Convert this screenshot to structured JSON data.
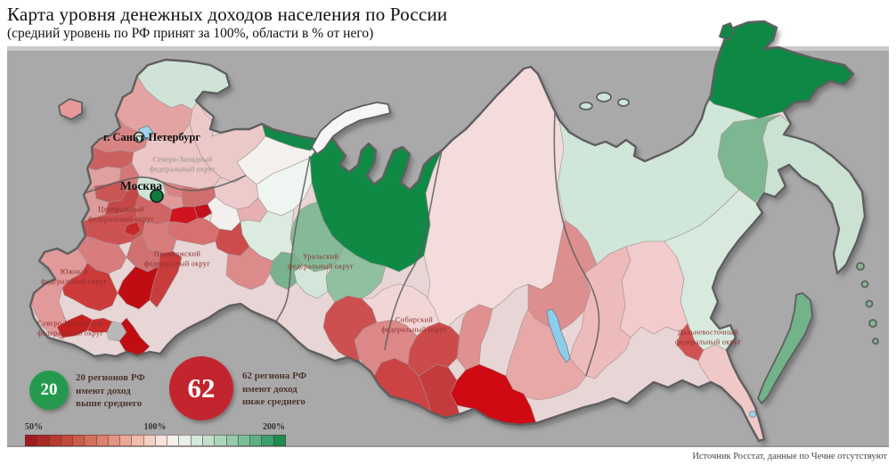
{
  "title": "Карта уровня денежных доходов населения по России",
  "subtitle": "(средний уровень по РФ принят за 100%, области в % от него)",
  "source": "Источник Росстат, данные по Чечне отсутствуют",
  "map": {
    "cities": [
      {
        "name": "г. Санкт-Петербург"
      },
      {
        "name": "Москва"
      }
    ],
    "districts": [
      {
        "line1": "Северо-Западный",
        "line2": "федеральный округ"
      },
      {
        "line1": "Центральный",
        "line2": "федеральный округ"
      },
      {
        "line1": "Приволжский",
        "line2": "федеральный округ"
      },
      {
        "line1": "Южный",
        "line2": "федеральный округ"
      },
      {
        "line1": "Северо-Кавказский",
        "line2": "федеральный округ"
      },
      {
        "line1": "Уральский",
        "line2": "федеральный округ"
      },
      {
        "line1": "Сибирский",
        "line2": "федеральный округ"
      },
      {
        "line1": "Дальневосточный",
        "line2": "федеральный округ"
      }
    ]
  },
  "legend": {
    "above": {
      "value": "20",
      "lines": "20 регионов РФ\nимеют доход\nвыше среднего",
      "color": "#259a4e"
    },
    "below": {
      "value": "62",
      "lines": "62 региона РФ\nимеют доход\nниже среднего",
      "color": "#c3252e"
    }
  },
  "scale": {
    "min": "50%",
    "mid": "100%",
    "max": "200%",
    "colors": [
      "#a01b20",
      "#ab2a25",
      "#b63a2e",
      "#c04b3c",
      "#ca5d4b",
      "#d3705c",
      "#db836e",
      "#e29681",
      "#e9aa96",
      "#efbdac",
      "#f4d0c5",
      "#f9e3dd",
      "#f7f1ee",
      "#e7f1e9",
      "#d5e9db",
      "#c1e0cd",
      "#abd6bd",
      "#93cbac",
      "#79bf9a",
      "#5cb085",
      "#3d9f6e",
      "#1f8c52"
    ]
  },
  "palette": {
    "sea": "#a9a9a9",
    "outline": "#5f5f5f",
    "no_data": "#b8b8b8",
    "max_above": "#0e8845",
    "max_below": "#c00d14",
    "water": "#9fd2ee"
  }
}
